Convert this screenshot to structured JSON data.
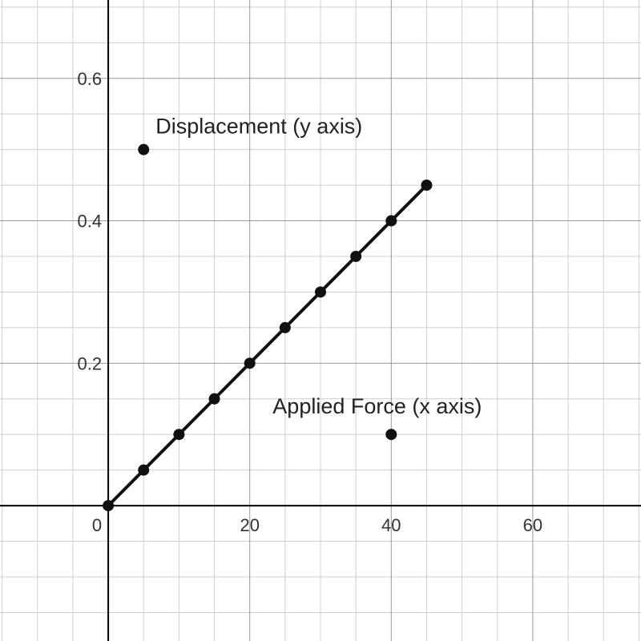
{
  "chart_data": {
    "type": "scatter",
    "title": "",
    "xlabel": "",
    "ylabel": "",
    "xlim": [
      -15.3,
      75.3
    ],
    "ylim": [
      -0.19,
      0.71
    ],
    "grid": true,
    "x_ticks": [
      {
        "value": 20,
        "label": "20"
      },
      {
        "value": 40,
        "label": "40"
      },
      {
        "value": 60,
        "label": "60"
      }
    ],
    "y_ticks": [
      {
        "value": 0.2,
        "label": "0.2"
      },
      {
        "value": 0.4,
        "label": "0.4"
      },
      {
        "value": 0.6,
        "label": "0.6"
      }
    ],
    "origin_label": "0",
    "series": [
      {
        "x": [
          0,
          5,
          10,
          15,
          20,
          25,
          30,
          35,
          40,
          45
        ],
        "y": [
          0,
          0.05,
          0.1,
          0.15,
          0.2,
          0.25,
          0.3,
          0.35,
          0.4,
          0.45
        ],
        "line": true,
        "color": "#111111"
      }
    ],
    "annotations": [
      {
        "text": "Displacement (y axis)",
        "x": 5,
        "y": 0.5,
        "label_anchor": "upper-right"
      },
      {
        "text": "Applied Force (x axis)",
        "x": 40,
        "y": 0.1,
        "label_anchor": "upper-left"
      }
    ]
  }
}
